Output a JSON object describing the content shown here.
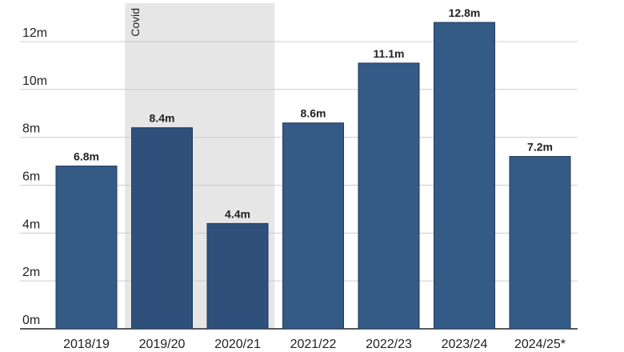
{
  "chart_data": {
    "type": "bar",
    "categories": [
      "2018/19",
      "2019/20",
      "2020/21",
      "2021/22",
      "2022/23",
      "2023/24",
      "2024/25*"
    ],
    "values": [
      6.8,
      8.4,
      4.4,
      8.6,
      11.1,
      12.8,
      7.2
    ],
    "value_labels": [
      "6.8m",
      "8.4m",
      "4.4m",
      "8.6m",
      "11.1m",
      "12.8m",
      "7.2m"
    ],
    "title": "",
    "xlabel": "",
    "ylabel": "",
    "ylim": [
      0,
      13.5
    ],
    "yticks": [
      0,
      2,
      4,
      6,
      8,
      10,
      12
    ],
    "ytick_labels": [
      "0m",
      "2m",
      "4m",
      "6m",
      "8m",
      "10m",
      "12m"
    ],
    "grid": true,
    "shaded_region": {
      "label": "Covid",
      "categories": [
        "2019/20",
        "2020/21"
      ]
    },
    "colors": {
      "bar": "#345a86",
      "bar_shaded": "#2f507a",
      "shade": "#e6e6e6",
      "grid": "#cccccc",
      "axis": "#222222"
    }
  }
}
